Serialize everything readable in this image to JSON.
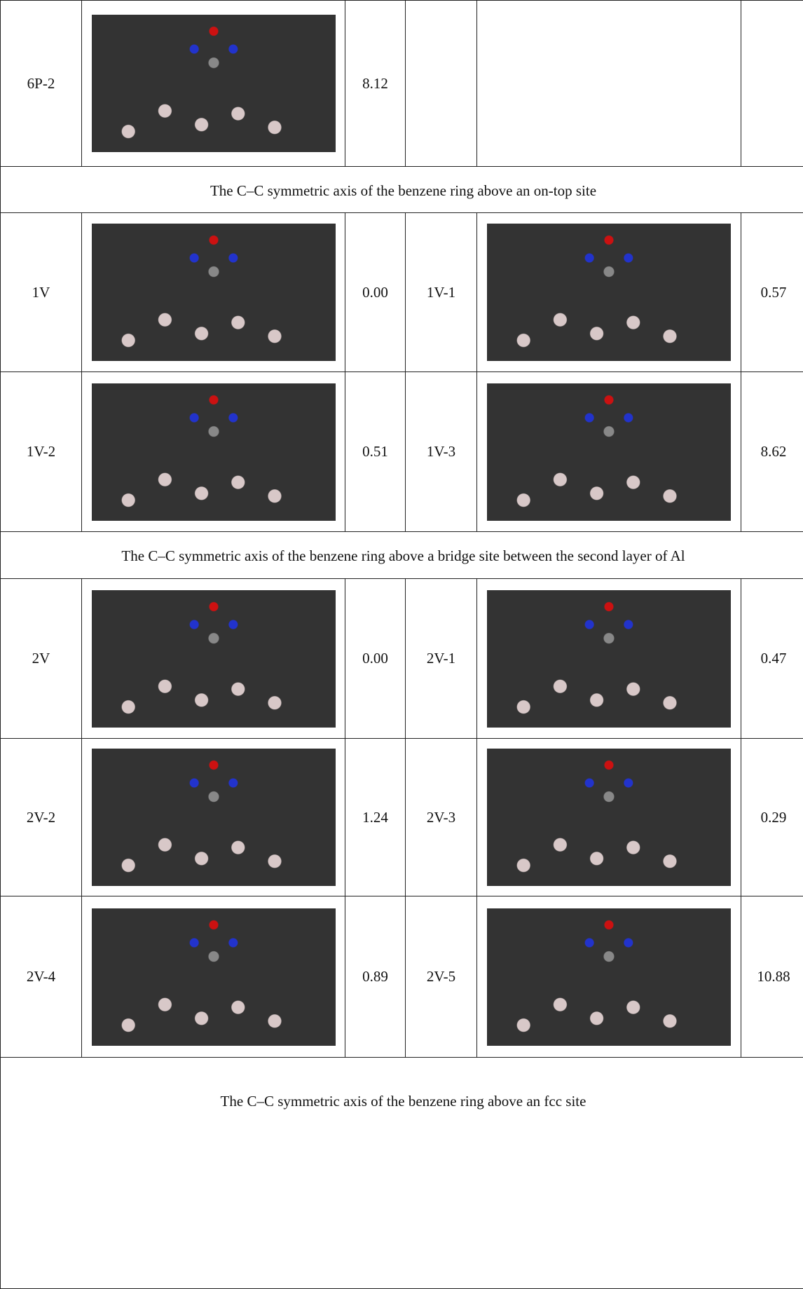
{
  "table": {
    "rows": [
      {
        "cells": [
          "6P-2",
          "8.12"
        ]
      },
      {
        "heading": "The C–C symmetric axis of the benzene ring above an on-top site"
      },
      {
        "cells": [
          "1V",
          "0.00",
          "1V-1",
          "0.57"
        ]
      },
      {
        "cells": [
          "1V-2",
          "0.51",
          "1V-3",
          "8.62"
        ]
      },
      {
        "heading": "The C–C symmetric axis of the benzene ring above a bridge site between the second layer of Al"
      },
      {
        "cells": [
          "2V",
          "0.00",
          "2V-1",
          "0.47"
        ]
      },
      {
        "cells": [
          "2V-2",
          "1.24",
          "2V-3",
          "0.29"
        ]
      },
      {
        "cells": [
          "2V-4",
          "0.89",
          "2V-5",
          "10.88"
        ]
      },
      {
        "heading": "The C–C symmetric axis of the benzene ring above an fcc site"
      }
    ]
  }
}
